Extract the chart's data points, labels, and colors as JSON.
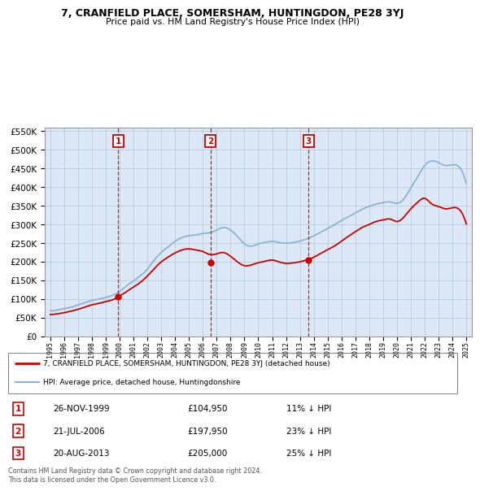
{
  "title": "7, CRANFIELD PLACE, SOMERSHAM, HUNTINGDON, PE28 3YJ",
  "subtitle": "Price paid vs. HM Land Registry's House Price Index (HPI)",
  "hpi_color": "#8ab4d4",
  "price_color": "#cc0000",
  "plot_bg": "#dce8f5",
  "ylim": [
    0,
    560000
  ],
  "yticks": [
    0,
    50000,
    100000,
    150000,
    200000,
    250000,
    300000,
    350000,
    400000,
    450000,
    500000,
    550000
  ],
  "sales": [
    {
      "num": 1,
      "date": "26-NOV-1999",
      "price": 104950,
      "pct": "11% ↓ HPI",
      "year": 1999.9
    },
    {
      "num": 2,
      "date": "21-JUL-2006",
      "price": 197950,
      "pct": "23% ↓ HPI",
      "year": 2006.55
    },
    {
      "num": 3,
      "date": "20-AUG-2013",
      "price": 205000,
      "pct": "25% ↓ HPI",
      "year": 2013.63
    }
  ],
  "legend_label_red": "7, CRANFIELD PLACE, SOMERSHAM, HUNTINGDON, PE28 3YJ (detached house)",
  "legend_label_blue": "HPI: Average price, detached house, Huntingdonshire",
  "footer": "Contains HM Land Registry data © Crown copyright and database right 2024.\nThis data is licensed under the Open Government Licence v3.0.",
  "xmin": 1994.6,
  "xmax": 2025.4,
  "hpi_data": {
    "years": [
      1995.0,
      1995.5,
      1996.0,
      1996.5,
      1997.0,
      1997.5,
      1998.0,
      1998.5,
      1999.0,
      1999.5,
      2000.0,
      2000.5,
      2001.0,
      2001.5,
      2002.0,
      2002.5,
      2003.0,
      2003.5,
      2004.0,
      2004.5,
      2005.0,
      2005.5,
      2006.0,
      2006.5,
      2007.0,
      2007.5,
      2008.0,
      2008.5,
      2009.0,
      2009.5,
      2010.0,
      2010.5,
      2011.0,
      2011.5,
      2012.0,
      2012.5,
      2013.0,
      2013.5,
      2014.0,
      2014.5,
      2015.0,
      2015.5,
      2016.0,
      2016.5,
      2017.0,
      2017.5,
      2018.0,
      2018.5,
      2019.0,
      2019.5,
      2020.0,
      2020.5,
      2021.0,
      2021.5,
      2022.0,
      2022.5,
      2023.0,
      2023.5,
      2024.0,
      2024.5
    ],
    "values": [
      68000,
      70000,
      74000,
      78000,
      84000,
      90000,
      96000,
      100000,
      104000,
      110000,
      120000,
      135000,
      148000,
      162000,
      180000,
      205000,
      225000,
      240000,
      255000,
      265000,
      270000,
      272000,
      276000,
      278000,
      285000,
      292000,
      285000,
      268000,
      248000,
      242000,
      248000,
      252000,
      255000,
      252000,
      250000,
      252000,
      256000,
      262000,
      270000,
      280000,
      290000,
      300000,
      312000,
      322000,
      332000,
      342000,
      350000,
      356000,
      360000,
      362000,
      358000,
      370000,
      400000,
      430000,
      460000,
      472000,
      468000,
      460000,
      462000,
      455000
    ]
  },
  "price_data": {
    "years": [
      1995.0,
      1995.5,
      1996.0,
      1996.5,
      1997.0,
      1997.5,
      1998.0,
      1998.5,
      1999.0,
      1999.5,
      2000.0,
      2000.5,
      2001.0,
      2001.5,
      2002.0,
      2002.5,
      2003.0,
      2003.5,
      2004.0,
      2004.5,
      2005.0,
      2005.5,
      2006.0,
      2006.5,
      2007.0,
      2007.5,
      2008.0,
      2008.5,
      2009.0,
      2009.5,
      2010.0,
      2010.5,
      2011.0,
      2011.5,
      2012.0,
      2012.5,
      2013.0,
      2013.5,
      2014.0,
      2014.5,
      2015.0,
      2015.5,
      2016.0,
      2016.5,
      2017.0,
      2017.5,
      2018.0,
      2018.5,
      2019.0,
      2019.5,
      2020.0,
      2020.5,
      2021.0,
      2021.5,
      2022.0,
      2022.5,
      2023.0,
      2023.5,
      2024.0,
      2024.5
    ],
    "values": [
      58000,
      60000,
      63000,
      67000,
      72000,
      78000,
      84000,
      88000,
      93000,
      98000,
      108000,
      120000,
      132000,
      145000,
      162000,
      182000,
      200000,
      213000,
      224000,
      232000,
      235000,
      232000,
      228000,
      220000,
      222000,
      225000,
      215000,
      200000,
      190000,
      192000,
      198000,
      202000,
      205000,
      200000,
      196000,
      197000,
      200000,
      205000,
      212000,
      222000,
      232000,
      242000,
      255000,
      268000,
      280000,
      292000,
      300000,
      308000,
      312000,
      315000,
      308000,
      320000,
      342000,
      360000,
      370000,
      355000,
      348000,
      342000,
      345000,
      340000
    ]
  }
}
